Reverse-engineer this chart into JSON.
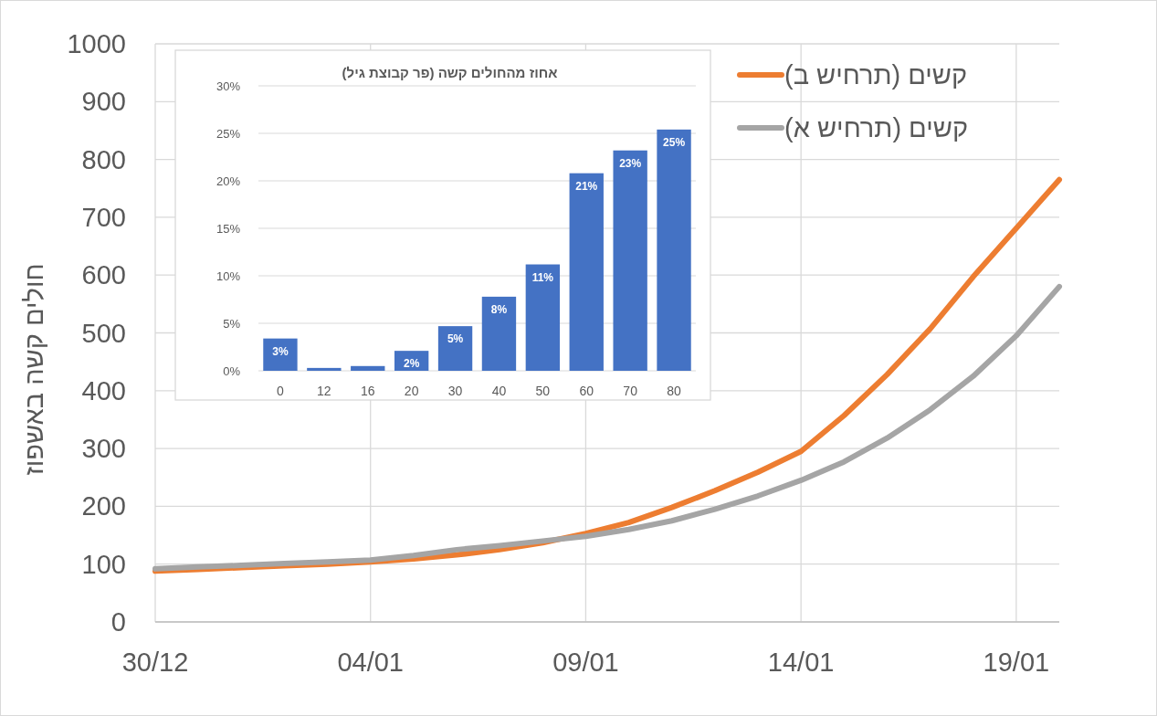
{
  "chart_data": [
    {
      "type": "line",
      "ylabel": "חולים קשה באשפוז",
      "categories": [
        "30/12",
        null,
        null,
        null,
        null,
        "04/01",
        null,
        null,
        null,
        null,
        "09/01",
        null,
        null,
        null,
        null,
        "14/01",
        null,
        null,
        null,
        null,
        "19/01",
        null
      ],
      "ylim": [
        0,
        1000
      ],
      "yticks": [
        0,
        100,
        200,
        300,
        400,
        500,
        600,
        700,
        800,
        900,
        1000
      ],
      "grid": true,
      "legend": "top right",
      "series": [
        {
          "name": "קשים (תרחיש ב)",
          "color": "#ed7d31",
          "values": [
            88,
            91,
            94,
            97,
            100,
            104,
            109,
            116,
            125,
            137,
            153,
            172,
            198,
            227,
            259,
            295,
            357,
            428,
            507,
            597,
            681,
            765
          ]
        },
        {
          "name": "קשים (תרחיש א)",
          "color": "#a5a5a5",
          "values": [
            92,
            95,
            98,
            101,
            104,
            107,
            115,
            125,
            132,
            140,
            148,
            160,
            175,
            195,
            218,
            245,
            277,
            318,
            367,
            425,
            495,
            580
          ]
        }
      ]
    },
    {
      "type": "bar",
      "title": "אחוז מהחולים קשה (פר קבוצת גיל)",
      "categories": [
        "0",
        "12",
        "16",
        "20",
        "30",
        "40",
        "50",
        "60",
        "70",
        "80"
      ],
      "values": [
        3.4,
        0.3,
        0.5,
        2.1,
        4.7,
        7.8,
        11.2,
        20.8,
        23.2,
        25.4
      ],
      "color": "#4472c4",
      "value_labels": [
        "3%",
        null,
        null,
        "2%",
        "5%",
        "8%",
        "11%",
        "21%",
        "23%",
        "25%"
      ],
      "ylim": [
        0,
        30
      ],
      "yticks": [
        {
          "value": 0,
          "label": "0%"
        },
        {
          "value": 5,
          "label": "5%"
        },
        {
          "value": 10,
          "label": "10%"
        },
        {
          "value": 15,
          "label": "15%"
        },
        {
          "value": 20,
          "label": "20%"
        },
        {
          "value": 25,
          "label": "25%"
        },
        {
          "value": 30,
          "label": "30%"
        }
      ],
      "grid": "y"
    }
  ]
}
